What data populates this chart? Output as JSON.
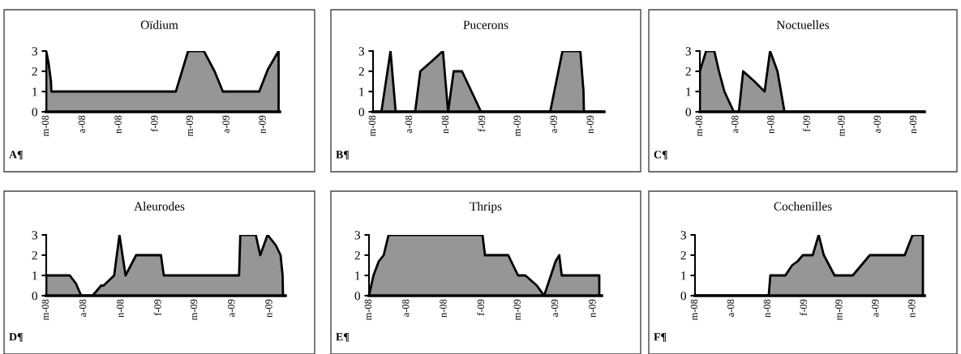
{
  "chart_data": [
    {
      "type": "area",
      "title": "Oïdium",
      "annotations": [
        "A¶"
      ],
      "xlim": [
        "2008-05-01",
        "2009-12-13"
      ],
      "xticks": [
        {
          "value": "2008-05-01",
          "label": "m-08"
        },
        {
          "value": "2008-08-01",
          "label": "a-08"
        },
        {
          "value": "2008-11-01",
          "label": "n-08"
        },
        {
          "value": "2009-02-01",
          "label": "f-09"
        },
        {
          "value": "2009-05-01",
          "label": "m-09"
        },
        {
          "value": "2009-08-01",
          "label": "a-09"
        },
        {
          "value": "2009-11-01",
          "label": "n-09"
        }
      ],
      "ylim": [
        0,
        3
      ],
      "yticks": [
        0,
        1,
        2,
        3
      ],
      "series": [
        {
          "color": "#969696",
          "x": [
            "2008-05-01",
            "2008-05-07",
            "2008-05-13",
            "2008-05-14",
            "2009-03-25",
            "2009-04-25",
            "2009-06-04",
            "2009-07-01",
            "2009-07-22",
            "2009-10-22",
            "2009-11-13",
            "2009-12-10"
          ],
          "values": [
            3,
            2.4,
            1.5,
            1,
            1,
            3,
            3,
            2,
            1,
            1,
            2.1,
            3
          ]
        }
      ]
    },
    {
      "type": "area",
      "title": "Pucerons",
      "annotations": [
        "B¶"
      ],
      "xlim": [
        "2008-05-01",
        "2009-12-04"
      ],
      "xticks": [
        {
          "value": "2008-05-01",
          "label": "m-08"
        },
        {
          "value": "2008-08-01",
          "label": "a-08"
        },
        {
          "value": "2008-11-01",
          "label": "n-08"
        },
        {
          "value": "2009-02-01",
          "label": "f-09"
        },
        {
          "value": "2009-05-01",
          "label": "m-09"
        },
        {
          "value": "2009-08-01",
          "label": "a-09"
        },
        {
          "value": "2009-11-01",
          "label": "n-09"
        }
      ],
      "ylim": [
        0,
        3
      ],
      "yticks": [
        0,
        1,
        2,
        3
      ],
      "series": [
        {
          "color": "#969696",
          "x": [
            "2008-05-01",
            "2008-05-22",
            "2008-06-14",
            "2008-06-27",
            "2008-08-15",
            "2008-08-28",
            "2008-09-26",
            "2008-10-24",
            "2008-11-06",
            "2008-11-20",
            "2008-12-11",
            "2009-01-04",
            "2009-01-28",
            "2009-07-21",
            "2009-08-21",
            "2009-10-05",
            "2009-10-13",
            "2009-10-14",
            "2009-12-01"
          ],
          "values": [
            0,
            0,
            3,
            0,
            0,
            2,
            2.5,
            3,
            0,
            2,
            2,
            1,
            0,
            0,
            3,
            3,
            1,
            0,
            0
          ]
        }
      ]
    },
    {
      "type": "area",
      "title": "Noctuelles",
      "annotations": [
        "C¶"
      ],
      "xlim": [
        "2008-05-01",
        "2009-11-28"
      ],
      "xticks": [
        {
          "value": "2008-05-01",
          "label": "m-08"
        },
        {
          "value": "2008-08-01",
          "label": "a-08"
        },
        {
          "value": "2008-11-01",
          "label": "n-08"
        },
        {
          "value": "2009-02-01",
          "label": "f-09"
        },
        {
          "value": "2009-05-01",
          "label": "m-09"
        },
        {
          "value": "2009-08-01",
          "label": "a-09"
        },
        {
          "value": "2009-11-01",
          "label": "n-09"
        }
      ],
      "ylim": [
        0,
        3
      ],
      "yticks": [
        0,
        1,
        2,
        3
      ],
      "series": [
        {
          "color": "#969696",
          "x": [
            "2008-05-01",
            "2008-05-17",
            "2008-06-07",
            "2008-06-19",
            "2008-07-03",
            "2008-07-27",
            "2008-08-09",
            "2008-08-20",
            "2008-09-18",
            "2008-10-14",
            "2008-10-28",
            "2008-11-16",
            "2008-12-04",
            "2009-11-25"
          ],
          "values": [
            2,
            3,
            3,
            2,
            1,
            0,
            0,
            2,
            1.5,
            1,
            3,
            2,
            0,
            0
          ]
        }
      ]
    },
    {
      "type": "area",
      "title": "Aleurodes",
      "annotations": [
        "D¶"
      ],
      "xlim": [
        "2008-05-01",
        "2009-12-10"
      ],
      "xticks": [
        {
          "value": "2008-05-01",
          "label": "m-08"
        },
        {
          "value": "2008-08-01",
          "label": "a-08"
        },
        {
          "value": "2008-11-01",
          "label": "n-08"
        },
        {
          "value": "2009-02-01",
          "label": "f-09"
        },
        {
          "value": "2009-05-01",
          "label": "m-09"
        },
        {
          "value": "2009-08-01",
          "label": "a-09"
        },
        {
          "value": "2009-11-01",
          "label": "n-09"
        }
      ],
      "ylim": [
        0,
        3
      ],
      "yticks": [
        0,
        1,
        2,
        3
      ],
      "series": [
        {
          "color": "#969696",
          "x": [
            "2008-05-01",
            "2008-06-28",
            "2008-07-13",
            "2008-07-26",
            "2008-08-23",
            "2008-09-13",
            "2008-09-19",
            "2008-10-15",
            "2008-10-28",
            "2008-11-12",
            "2008-12-08",
            "2009-02-07",
            "2009-02-14",
            "2009-08-18",
            "2009-08-21",
            "2009-09-28",
            "2009-10-09",
            "2009-10-27",
            "2009-11-16",
            "2009-11-28",
            "2009-12-03",
            "2009-12-04"
          ],
          "values": [
            1,
            1,
            0.6,
            0,
            0,
            0.5,
            0.5,
            1,
            3,
            1,
            2,
            2,
            1,
            1,
            3,
            3,
            2,
            3,
            2.5,
            2,
            1,
            0
          ]
        }
      ]
    },
    {
      "type": "area",
      "title": "Thrips",
      "annotations": [
        "E¶"
      ],
      "xlim": [
        "2008-05-01",
        "2009-11-22"
      ],
      "xticks": [
        {
          "value": "2008-05-01",
          "label": "m-08"
        },
        {
          "value": "2008-08-01",
          "label": "a-08"
        },
        {
          "value": "2008-11-01",
          "label": "n-08"
        },
        {
          "value": "2009-02-01",
          "label": "f-09"
        },
        {
          "value": "2009-05-01",
          "label": "m-09"
        },
        {
          "value": "2009-08-01",
          "label": "a-09"
        },
        {
          "value": "2009-11-01",
          "label": "n-09"
        }
      ],
      "ylim": [
        0,
        3
      ],
      "yticks": [
        0,
        1,
        2,
        3
      ],
      "series": [
        {
          "color": "#969696",
          "x": [
            "2008-05-01",
            "2008-05-12",
            "2008-05-25",
            "2008-06-06",
            "2008-06-18",
            "2009-02-03",
            "2009-02-09",
            "2009-04-07",
            "2009-05-01",
            "2009-05-19",
            "2009-06-16",
            "2009-07-04",
            "2009-08-01",
            "2009-08-10",
            "2009-08-16",
            "2009-11-16"
          ],
          "values": [
            0,
            1,
            1.7,
            2,
            3,
            3,
            2,
            2,
            1,
            1,
            0.5,
            0,
            1.7,
            2,
            1,
            1
          ]
        }
      ]
    },
    {
      "type": "area",
      "title": "Cochenilles",
      "annotations": [
        "F¶"
      ],
      "xlim": [
        "2008-05-01",
        "2009-12-01"
      ],
      "xticks": [
        {
          "value": "2008-05-01",
          "label": "m-08"
        },
        {
          "value": "2008-08-01",
          "label": "a-08"
        },
        {
          "value": "2008-11-01",
          "label": "n-08"
        },
        {
          "value": "2009-02-01",
          "label": "f-09"
        },
        {
          "value": "2009-05-01",
          "label": "m-09"
        },
        {
          "value": "2009-08-01",
          "label": "a-09"
        },
        {
          "value": "2009-11-01",
          "label": "n-09"
        }
      ],
      "ylim": [
        0,
        3
      ],
      "yticks": [
        0,
        1,
        2,
        3
      ],
      "series": [
        {
          "color": "#969696",
          "x": [
            "2008-05-01",
            "2008-11-03",
            "2008-11-07",
            "2008-12-15",
            "2009-01-01",
            "2009-01-15",
            "2009-01-28",
            "2009-02-22",
            "2009-03-09",
            "2009-03-22",
            "2009-04-18",
            "2009-06-03",
            "2009-07-16",
            "2009-10-12",
            "2009-11-01",
            "2009-11-27"
          ],
          "values": [
            0,
            0,
            1,
            1,
            1.5,
            1.7,
            2,
            2,
            3,
            2,
            1,
            1,
            2,
            2,
            3,
            3
          ]
        }
      ]
    }
  ]
}
